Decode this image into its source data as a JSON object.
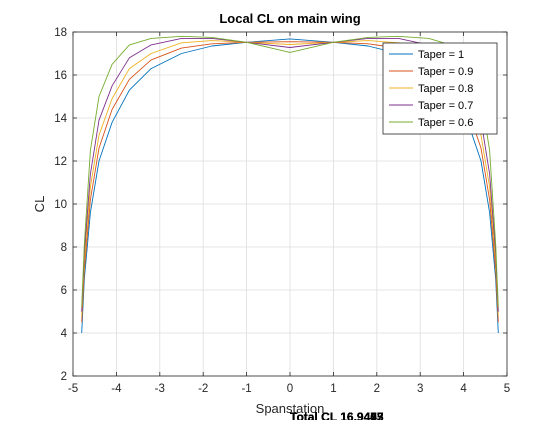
{
  "chart_data": {
    "type": "line",
    "title": "Local CL on main wing",
    "xlabel": "Spanstation",
    "ylabel": "CL",
    "xlim": [
      -5,
      5
    ],
    "ylim": [
      2,
      18
    ],
    "xticks": [
      -5,
      -4,
      -3,
      -2,
      -1,
      0,
      1,
      2,
      3,
      4,
      5
    ],
    "yticks": [
      2,
      4,
      6,
      8,
      10,
      12,
      14,
      16,
      18
    ],
    "grid": true,
    "legend_position": "top-right",
    "x": [
      -4.8,
      -4.74,
      -4.6,
      -4.4,
      -4.1,
      -3.7,
      -3.2,
      -2.5,
      -1.8,
      -1.0,
      0.0,
      1.0,
      1.8,
      2.5,
      3.2,
      3.7,
      4.1,
      4.4,
      4.6,
      4.74,
      4.8
    ],
    "series": [
      {
        "name": "Taper = 1",
        "color": "#0072BD",
        "values": [
          4.0,
          6.5,
          9.6,
          12.0,
          13.8,
          15.3,
          16.3,
          17.0,
          17.35,
          17.52,
          17.68,
          17.52,
          17.35,
          17.0,
          16.3,
          15.3,
          13.8,
          12.0,
          9.6,
          6.5,
          4.0
        ]
      },
      {
        "name": "Taper = 0.9",
        "color": "#D95319",
        "values": [
          4.5,
          6.9,
          10.2,
          12.6,
          14.4,
          15.8,
          16.7,
          17.25,
          17.45,
          17.52,
          17.55,
          17.52,
          17.45,
          17.25,
          16.7,
          15.8,
          14.4,
          12.6,
          10.2,
          6.9,
          4.5
        ]
      },
      {
        "name": "Taper = 0.8",
        "color": "#EDB120",
        "values": [
          4.8,
          7.3,
          10.8,
          13.2,
          14.9,
          16.3,
          17.0,
          17.5,
          17.6,
          17.52,
          17.42,
          17.52,
          17.6,
          17.5,
          17.0,
          16.3,
          14.9,
          13.2,
          10.8,
          7.3,
          4.8
        ]
      },
      {
        "name": "Taper = 0.7",
        "color": "#7E2F8E",
        "values": [
          5.0,
          7.7,
          11.4,
          13.9,
          15.5,
          16.8,
          17.4,
          17.7,
          17.7,
          17.52,
          17.28,
          17.52,
          17.7,
          17.7,
          17.4,
          16.8,
          15.5,
          13.9,
          11.4,
          7.7,
          5.0
        ]
      },
      {
        "name": "Taper = 0.6",
        "color": "#77AC30",
        "values": [
          5.2,
          8.1,
          12.5,
          15.0,
          16.5,
          17.4,
          17.7,
          17.8,
          17.75,
          17.52,
          17.05,
          17.52,
          17.75,
          17.8,
          17.7,
          17.4,
          16.5,
          15.0,
          12.5,
          8.1,
          5.2
        ]
      }
    ],
    "annotations": [
      "Total CL 16.9403",
      "Total CL 16.9443",
      "Total CL 16.9467",
      "Total CL 16.9475",
      "Total CL 16.9463"
    ]
  }
}
